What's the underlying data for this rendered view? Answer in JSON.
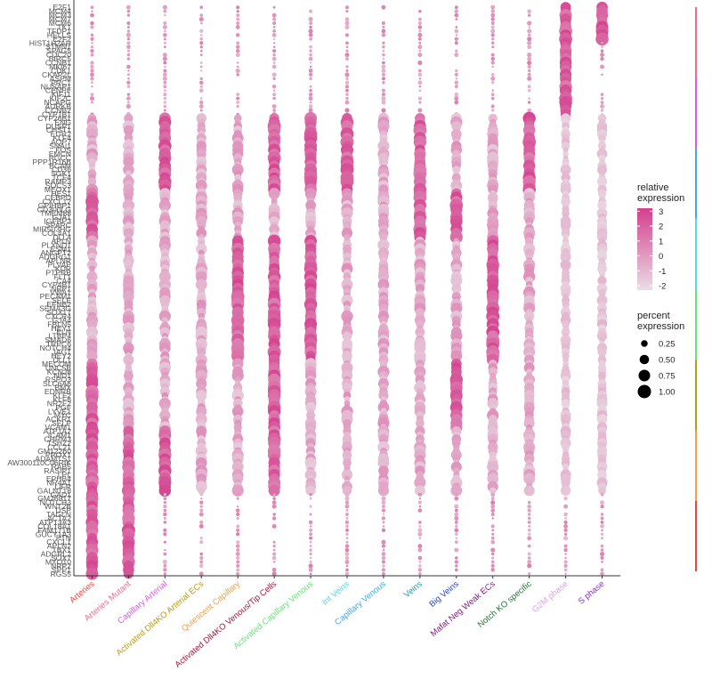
{
  "chart_data": {
    "type": "dotplot",
    "title": "",
    "xlabel": "",
    "ylabel": "",
    "genes": [
      "E2F1",
      "MCM4",
      "MCM3",
      "MCM7",
      "MCM6",
      "TK1",
      "TFDP1",
      "HELLS",
      "E2F2",
      "HIST1H2AH",
      "STMN1",
      "SPAG5",
      "CDC20",
      "BIRC5",
      "CCNB1",
      "MKI67",
      "CDK1",
      "CKAP2L",
      "ASPM",
      "PRC1",
      "NUSAP1",
      "CENPF",
      "KIF11",
      "KIF2C",
      "NCAPG",
      "AURKB",
      "CCNB2",
      "CYP1B1",
      "CYP26B1",
      "ENG",
      "DUSP1",
      "CHST1",
      "EGR2",
      "KLF4",
      "AQP7",
      "SNAI1",
      "FOS",
      "EMCN",
      "RGCC",
      "PPP1R16B",
      "BCAM",
      "CD36",
      "SGK1",
      "TCF4",
      "RAMP3",
      "SOCS3",
      "MEOX1",
      "HES1",
      "CEBPD",
      "CXCL12",
      "GPIHBP1",
      "CD300LG",
      "TMEM88",
      "GJA1",
      "IGFBP3",
      "SPARC",
      "MIR503HG",
      "COL4A1",
      "DLL4",
      "APLN",
      "PLXND1",
      "ESM1",
      "ANGPT2",
      "ADGRG1",
      "APLNR",
      "PLVAP",
      "KDR",
      "PTPRB",
      "FLT1",
      "CA4",
      "CYP4B1",
      "NRP1",
      "VWA1",
      "PECAM1",
      "SELE",
      "EFNB2",
      "SEMA3G",
      "SOX17",
      "CXCR4",
      "GJA4",
      "FBLN5",
      "HEY1",
      "ELN",
      "LTBP4",
      "SMAD6",
      "TRPC6",
      "NOTCH4",
      "JAG1",
      "HEY2",
      "DLL1",
      "MECOM",
      "UNC5B",
      "KCNJ8",
      "NID1",
      "RSPO3",
      "SLC6A6",
      "BMX",
      "EDNRB",
      "KLF2",
      "KLF6",
      "NR2F2",
      "PGF",
      "LYVE1",
      "MYC",
      "ACKR1",
      "SELP",
      "VCAM1",
      "ATP1A2",
      "ICAM1",
      "CHRM3",
      "TSHZ2",
      "CCL21",
      "GM12260",
      "PROX1",
      "ADAMTS1",
      "AW300110C06RIK",
      "RAB5",
      "RASIP1",
      "LPL",
      "EPHB4",
      "NR4A1",
      "LIFR",
      "GALNT18",
      "GAD1",
      "GM26917",
      "NOTCH3",
      "WNT2B",
      "DSP",
      "TAGLN",
      "ACTA2",
      "ATP13A3",
      "COL18A1",
      "FAM171B",
      "GUCY1A3",
      "PTN",
      "CXCL1",
      "APLN2",
      "TBX1",
      "ADGRL2",
      "SOX7",
      "MYO10",
      "NRP2",
      "SPP1",
      "RGS5"
    ],
    "clusters": [
      {
        "name": "Arteries",
        "color": "#e8463c"
      },
      {
        "name": "Arteries Mutant",
        "color": "#ef6c8e"
      },
      {
        "name": "Capillary Arterial",
        "color": "#d95be6"
      },
      {
        "name": "Activated Dll4KO Arterial ECs",
        "color": "#b89c14"
      },
      {
        "name": "Quiescent Capillary",
        "color": "#f0a04b"
      },
      {
        "name": "Activated Dll4KO Venous/Tip Cells",
        "color": "#a5163a"
      },
      {
        "name": "Activated Capillary Venous",
        "color": "#6be07c"
      },
      {
        "name": "Int Veins",
        "color": "#55d8ef"
      },
      {
        "name": "Capillary Venous",
        "color": "#47a8e0"
      },
      {
        "name": "Veins",
        "color": "#1e9bb5"
      },
      {
        "name": "Big Veins",
        "color": "#2d45c8"
      },
      {
        "name": "Mafat Neg Weak ECs",
        "color": "#7a1a7e"
      },
      {
        "name": "Notch KO specific",
        "color": "#1a7a30"
      },
      {
        "name": "G2M phase",
        "color": "#e09ef0"
      },
      {
        "name": "S phase",
        "color": "#8a2fc9"
      }
    ],
    "color_scale": {
      "title": "relative expression",
      "min": -2.3,
      "max": 3.2,
      "low_color": "#e9dee5",
      "high_color": "#d43f8d",
      "ticks": [
        3,
        2,
        1,
        0,
        -1,
        -2
      ]
    },
    "size_scale": {
      "title": "percent expression",
      "ticks": [
        0.25,
        0.5,
        0.75,
        1.0
      ],
      "tick_labels": [
        "0.25",
        "0.50",
        "0.75",
        "1.00"
      ]
    },
    "sidebar_colors": [
      "#ef6c8e",
      "#d95be6",
      "#47a8e0",
      "#55d8ef",
      "#6be07c",
      "#b89c14",
      "#f0a04b",
      "#e8463c"
    ]
  }
}
